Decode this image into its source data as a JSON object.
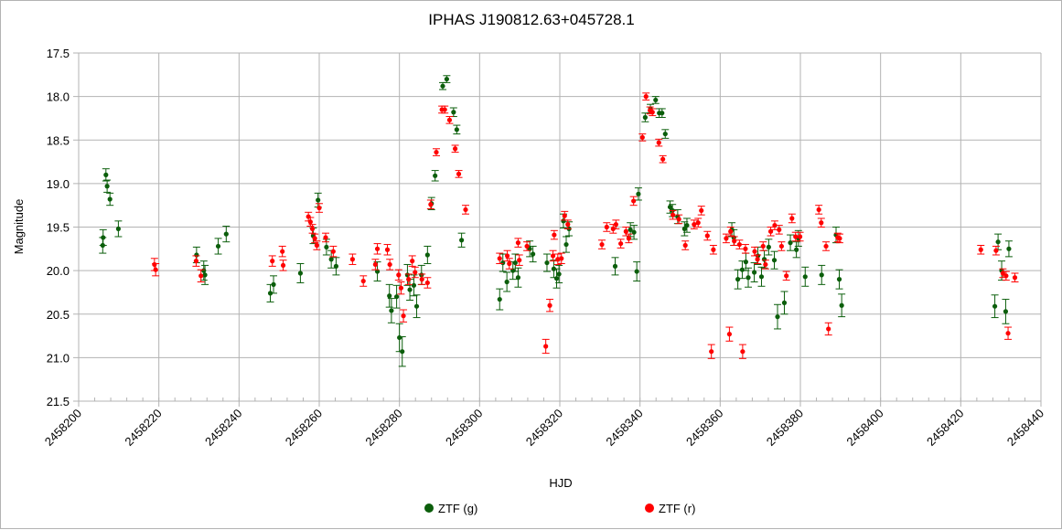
{
  "chart_data": {
    "type": "scatter",
    "title": "IPHAS J190812.63+045728.1",
    "xlabel": "HJD",
    "ylabel": "Magnitude",
    "xlim": [
      2458200,
      2458440
    ],
    "ylim": [
      21.5,
      17.5
    ],
    "y_inverted": true,
    "x_ticks": [
      "2458200",
      "2458220",
      "2458240",
      "2458260",
      "2458280",
      "2458300",
      "2458320",
      "2458340",
      "2458360",
      "2458380",
      "2458400",
      "2458420",
      "2458440"
    ],
    "y_ticks": [
      "17.5",
      "18.0",
      "18.5",
      "19.0",
      "19.5",
      "20.0",
      "20.5",
      "21.0",
      "21.5"
    ],
    "grid": true,
    "legend_position": "bottom",
    "series": [
      {
        "name": "ZTF (g)",
        "color": "#0b5e0b",
        "points": [
          [
            2458206.0,
            19.71,
            0.09
          ],
          [
            2458206.1,
            19.62,
            0.09
          ],
          [
            2458206.8,
            18.9,
            0.07
          ],
          [
            2458207.1,
            19.03,
            0.07
          ],
          [
            2458207.8,
            19.18,
            0.07
          ],
          [
            2458209.9,
            19.52,
            0.09
          ],
          [
            2458229.4,
            19.82,
            0.09
          ],
          [
            2458231.2,
            20.0,
            0.11
          ],
          [
            2458231.5,
            20.05,
            0.11
          ],
          [
            2458234.8,
            19.72,
            0.09
          ],
          [
            2458236.8,
            19.58,
            0.09
          ],
          [
            2458247.8,
            20.26,
            0.1
          ],
          [
            2458248.6,
            20.16,
            0.1
          ],
          [
            2458255.3,
            20.03,
            0.11
          ],
          [
            2458258.5,
            19.6,
            0.09
          ],
          [
            2458259.7,
            19.19,
            0.08
          ],
          [
            2458261.8,
            19.73,
            0.09
          ],
          [
            2458263.0,
            19.87,
            0.1
          ],
          [
            2458264.2,
            19.95,
            0.1
          ],
          [
            2458274.5,
            20.01,
            0.11
          ],
          [
            2458277.5,
            20.29,
            0.13
          ],
          [
            2458278.0,
            20.46,
            0.14
          ],
          [
            2458279.3,
            20.3,
            0.13
          ],
          [
            2458280.0,
            20.77,
            0.16
          ],
          [
            2458280.7,
            20.93,
            0.17
          ],
          [
            2458282.0,
            20.05,
            0.12
          ],
          [
            2458282.6,
            20.22,
            0.12
          ],
          [
            2458283.6,
            20.17,
            0.12
          ],
          [
            2458284.3,
            20.41,
            0.13
          ],
          [
            2458285.5,
            20.05,
            0.11
          ],
          [
            2458287.0,
            19.82,
            0.1
          ],
          [
            2458288.0,
            19.23,
            0.07
          ],
          [
            2458288.9,
            18.91,
            0.06
          ],
          [
            2458290.8,
            17.88,
            0.04
          ],
          [
            2458291.8,
            17.8,
            0.04
          ],
          [
            2458293.5,
            18.18,
            0.05
          ],
          [
            2458294.3,
            18.38,
            0.05
          ],
          [
            2458295.5,
            19.65,
            0.08
          ],
          [
            2458305.0,
            20.33,
            0.12
          ],
          [
            2458305.8,
            19.91,
            0.1
          ],
          [
            2458306.8,
            20.13,
            0.11
          ],
          [
            2458308.3,
            20.0,
            0.1
          ],
          [
            2458308.9,
            19.91,
            0.1
          ],
          [
            2458309.6,
            20.08,
            0.11
          ],
          [
            2458312.5,
            19.75,
            0.09
          ],
          [
            2458313.3,
            19.81,
            0.09
          ],
          [
            2458316.8,
            19.91,
            0.1
          ],
          [
            2458318.5,
            19.98,
            0.1
          ],
          [
            2458319.2,
            20.09,
            0.11
          ],
          [
            2458319.8,
            20.04,
            0.1
          ],
          [
            2458320.9,
            19.43,
            0.08
          ],
          [
            2458321.6,
            19.7,
            0.09
          ],
          [
            2458322.3,
            19.52,
            0.08
          ],
          [
            2458333.8,
            19.95,
            0.1
          ],
          [
            2458337.6,
            19.53,
            0.08
          ],
          [
            2458338.5,
            19.56,
            0.08
          ],
          [
            2458339.2,
            20.01,
            0.11
          ],
          [
            2458339.6,
            19.12,
            0.07
          ],
          [
            2458341.3,
            18.24,
            0.05
          ],
          [
            2458342.6,
            18.14,
            0.05
          ],
          [
            2458343.9,
            18.04,
            0.04
          ],
          [
            2458344.8,
            18.19,
            0.05
          ],
          [
            2458345.5,
            18.19,
            0.05
          ],
          [
            2458346.3,
            18.43,
            0.05
          ],
          [
            2458347.5,
            19.27,
            0.07
          ],
          [
            2458348.1,
            19.31,
            0.07
          ],
          [
            2458349.4,
            19.38,
            0.08
          ],
          [
            2458351.1,
            19.52,
            0.08
          ],
          [
            2458351.7,
            19.48,
            0.08
          ],
          [
            2458362.9,
            19.53,
            0.08
          ],
          [
            2458363.4,
            19.62,
            0.09
          ],
          [
            2458364.4,
            20.1,
            0.11
          ],
          [
            2458365.5,
            19.99,
            0.1
          ],
          [
            2458366.4,
            19.9,
            0.1
          ],
          [
            2458367.0,
            20.08,
            0.11
          ],
          [
            2458368.5,
            20.02,
            0.11
          ],
          [
            2458369.4,
            19.83,
            0.1
          ],
          [
            2458370.3,
            20.07,
            0.11
          ],
          [
            2458371.0,
            19.87,
            0.1
          ],
          [
            2458372.1,
            19.73,
            0.09
          ],
          [
            2458373.5,
            19.88,
            0.1
          ],
          [
            2458374.3,
            20.53,
            0.14
          ],
          [
            2458376.0,
            20.37,
            0.13
          ],
          [
            2458377.5,
            19.68,
            0.09
          ],
          [
            2458379.0,
            19.76,
            0.09
          ],
          [
            2458379.5,
            19.63,
            0.09
          ],
          [
            2458381.2,
            20.07,
            0.11
          ],
          [
            2458385.3,
            20.05,
            0.11
          ],
          [
            2458388.9,
            19.59,
            0.09
          ],
          [
            2458389.7,
            20.1,
            0.11
          ],
          [
            2458390.3,
            20.4,
            0.13
          ],
          [
            2458428.5,
            20.41,
            0.13
          ],
          [
            2458429.3,
            19.67,
            0.09
          ],
          [
            2458430.2,
            20.0,
            0.11
          ],
          [
            2458431.2,
            20.47,
            0.14
          ],
          [
            2458432.0,
            19.75,
            0.09
          ]
        ]
      },
      {
        "name": "ZTF (r)",
        "color": "#ff0000",
        "points": [
          [
            2458218.9,
            19.93,
            0.07
          ],
          [
            2458219.2,
            19.99,
            0.07
          ],
          [
            2458229.3,
            19.89,
            0.06
          ],
          [
            2458230.5,
            20.06,
            0.07
          ],
          [
            2458248.3,
            19.89,
            0.06
          ],
          [
            2458250.8,
            19.78,
            0.06
          ],
          [
            2458251.0,
            19.94,
            0.06
          ],
          [
            2458257.3,
            19.38,
            0.05
          ],
          [
            2458257.8,
            19.44,
            0.05
          ],
          [
            2458258.3,
            19.52,
            0.05
          ],
          [
            2458258.9,
            19.63,
            0.05
          ],
          [
            2458259.4,
            19.71,
            0.05
          ],
          [
            2458260.0,
            19.28,
            0.05
          ],
          [
            2458261.6,
            19.62,
            0.05
          ],
          [
            2458263.5,
            19.78,
            0.06
          ],
          [
            2458268.3,
            19.87,
            0.06
          ],
          [
            2458271.0,
            20.12,
            0.06
          ],
          [
            2458274.0,
            19.93,
            0.06
          ],
          [
            2458274.5,
            19.75,
            0.06
          ],
          [
            2458277.0,
            19.76,
            0.06
          ],
          [
            2458277.6,
            19.93,
            0.06
          ],
          [
            2458279.8,
            20.05,
            0.06
          ],
          [
            2458280.4,
            20.2,
            0.07
          ],
          [
            2458281.0,
            20.52,
            0.07
          ],
          [
            2458282.3,
            20.1,
            0.06
          ],
          [
            2458283.2,
            19.89,
            0.06
          ],
          [
            2458283.9,
            20.02,
            0.06
          ],
          [
            2458285.6,
            20.1,
            0.06
          ],
          [
            2458287.0,
            20.14,
            0.06
          ],
          [
            2458287.8,
            19.24,
            0.05
          ],
          [
            2458289.2,
            18.64,
            0.04
          ],
          [
            2458290.6,
            18.15,
            0.04
          ],
          [
            2458291.3,
            18.15,
            0.04
          ],
          [
            2458292.5,
            18.27,
            0.04
          ],
          [
            2458293.9,
            18.6,
            0.04
          ],
          [
            2458294.8,
            18.89,
            0.04
          ],
          [
            2458296.5,
            19.3,
            0.05
          ],
          [
            2458305.0,
            19.86,
            0.06
          ],
          [
            2458306.9,
            19.83,
            0.06
          ],
          [
            2458307.4,
            19.92,
            0.06
          ],
          [
            2458309.6,
            19.68,
            0.05
          ],
          [
            2458309.9,
            19.88,
            0.06
          ],
          [
            2458311.8,
            19.72,
            0.05
          ],
          [
            2458316.5,
            20.87,
            0.08
          ],
          [
            2458317.5,
            20.4,
            0.07
          ],
          [
            2458318.3,
            19.83,
            0.06
          ],
          [
            2458318.6,
            19.59,
            0.05
          ],
          [
            2458319.5,
            19.87,
            0.06
          ],
          [
            2458320.4,
            19.86,
            0.06
          ],
          [
            2458321.2,
            19.37,
            0.05
          ],
          [
            2458322.0,
            19.47,
            0.05
          ],
          [
            2458330.5,
            19.7,
            0.05
          ],
          [
            2458331.7,
            19.5,
            0.05
          ],
          [
            2458333.3,
            19.52,
            0.05
          ],
          [
            2458334.0,
            19.47,
            0.05
          ],
          [
            2458335.2,
            19.69,
            0.05
          ],
          [
            2458336.5,
            19.55,
            0.05
          ],
          [
            2458337.2,
            19.63,
            0.05
          ],
          [
            2458338.4,
            19.2,
            0.05
          ],
          [
            2458340.6,
            18.47,
            0.04
          ],
          [
            2458341.5,
            18.0,
            0.04
          ],
          [
            2458342.5,
            18.16,
            0.04
          ],
          [
            2458343.1,
            18.18,
            0.04
          ],
          [
            2458344.7,
            18.53,
            0.04
          ],
          [
            2458345.7,
            18.72,
            0.04
          ],
          [
            2458348.2,
            19.36,
            0.05
          ],
          [
            2458349.7,
            19.41,
            0.05
          ],
          [
            2458351.3,
            19.71,
            0.05
          ],
          [
            2458353.5,
            19.47,
            0.05
          ],
          [
            2458354.5,
            19.45,
            0.05
          ],
          [
            2458355.3,
            19.31,
            0.05
          ],
          [
            2458356.8,
            19.6,
            0.05
          ],
          [
            2458357.8,
            20.93,
            0.08
          ],
          [
            2458358.3,
            19.76,
            0.05
          ],
          [
            2458361.5,
            19.63,
            0.05
          ],
          [
            2458362.6,
            19.55,
            0.05
          ],
          [
            2458363.5,
            19.66,
            0.05
          ],
          [
            2458364.8,
            19.7,
            0.05
          ],
          [
            2458365.6,
            20.93,
            0.08
          ],
          [
            2458366.3,
            19.75,
            0.05
          ],
          [
            2458368.6,
            19.78,
            0.05
          ],
          [
            2458369.3,
            19.87,
            0.05
          ],
          [
            2458370.7,
            19.72,
            0.05
          ],
          [
            2458371.3,
            19.93,
            0.05
          ],
          [
            2458372.6,
            19.55,
            0.05
          ],
          [
            2458373.6,
            19.48,
            0.05
          ],
          [
            2458374.7,
            19.53,
            0.05
          ],
          [
            2458375.3,
            19.72,
            0.05
          ],
          [
            2458376.5,
            20.06,
            0.05
          ],
          [
            2458377.9,
            19.4,
            0.05
          ],
          [
            2458378.8,
            19.61,
            0.05
          ],
          [
            2458379.9,
            19.61,
            0.05
          ],
          [
            2458384.6,
            19.3,
            0.05
          ],
          [
            2458385.2,
            19.45,
            0.05
          ],
          [
            2458386.4,
            19.72,
            0.05
          ],
          [
            2458387.0,
            20.67,
            0.07
          ],
          [
            2458389.3,
            19.62,
            0.05
          ],
          [
            2458389.8,
            19.63,
            0.05
          ],
          [
            2458425.0,
            19.76,
            0.05
          ],
          [
            2458428.8,
            19.77,
            0.05
          ],
          [
            2458430.5,
            20.03,
            0.05
          ],
          [
            2458431.3,
            20.06,
            0.05
          ],
          [
            2458431.8,
            20.72,
            0.07
          ],
          [
            2458433.5,
            20.08,
            0.05
          ],
          [
            2458362.3,
            20.73,
            0.08
          ]
        ]
      }
    ]
  }
}
